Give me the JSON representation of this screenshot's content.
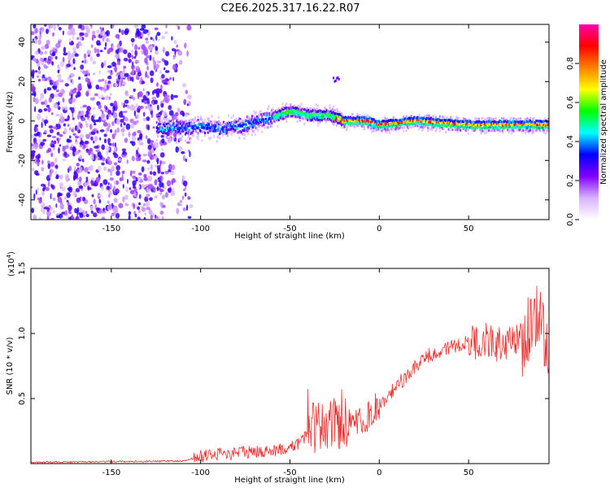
{
  "title": "C2E6.2025.317.16.22.R07",
  "chart_data": [
    {
      "type": "heatmap",
      "name": "spectrogram",
      "xlabel": "Height of straight line (km)",
      "ylabel": "Frequency (Hz)",
      "xlim": [
        -195,
        95
      ],
      "ylim": [
        -50,
        49
      ],
      "xticks": [
        -150,
        -100,
        -50,
        0,
        50
      ],
      "yticks": [
        -40,
        -20,
        0,
        20,
        40
      ],
      "colorbar": {
        "label": "Normalized spectral amplitude",
        "range": [
          0,
          1
        ],
        "ticks": [
          "0.0",
          "0.2",
          "0.4",
          "0.6",
          "0.8"
        ],
        "colors": [
          "#ffffff",
          "#d9b3ff",
          "#8000ff",
          "#0000ff",
          "#00ffff",
          "#00ff00",
          "#ffff00",
          "#ff8000",
          "#ff0000",
          "#ff00aa"
        ]
      },
      "ridge_center": [
        {
          "x": -120,
          "y": -4
        },
        {
          "x": -100,
          "y": -3
        },
        {
          "x": -90,
          "y": -4
        },
        {
          "x": -75,
          "y": -2
        },
        {
          "x": -60,
          "y": 2
        },
        {
          "x": -50,
          "y": 5
        },
        {
          "x": -40,
          "y": 3
        },
        {
          "x": -28,
          "y": 3
        },
        {
          "x": -20,
          "y": 0
        },
        {
          "x": -8,
          "y": 0
        },
        {
          "x": 0,
          "y": -2
        },
        {
          "x": 20,
          "y": 0
        },
        {
          "x": 50,
          "y": -2
        },
        {
          "x": 95,
          "y": -2
        }
      ]
    },
    {
      "type": "line",
      "name": "snr",
      "xlabel": "Height of straight line (km)",
      "ylabel": "SNR (10 * v/v)",
      "yscale_note": "(x10",
      "yscale_exp": "4",
      "xlim": [
        -195,
        95
      ],
      "ylim": [
        0,
        1.5
      ],
      "xticks": [
        -150,
        -100,
        -50,
        0,
        50
      ],
      "yticks": [
        "0.5",
        "1.0",
        "1.5"
      ],
      "color": "#e8312f",
      "envelope": [
        {
          "x": -195,
          "y": 0.01
        },
        {
          "x": -110,
          "y": 0.02
        },
        {
          "x": -100,
          "y": 0.06
        },
        {
          "x": -80,
          "y": 0.08
        },
        {
          "x": -60,
          "y": 0.1
        },
        {
          "x": -45,
          "y": 0.15
        },
        {
          "x": -35,
          "y": 0.3
        },
        {
          "x": -20,
          "y": 0.3
        },
        {
          "x": -10,
          "y": 0.32
        },
        {
          "x": 0,
          "y": 0.45
        },
        {
          "x": 10,
          "y": 0.6
        },
        {
          "x": 20,
          "y": 0.75
        },
        {
          "x": 30,
          "y": 0.85
        },
        {
          "x": 40,
          "y": 0.9
        },
        {
          "x": 50,
          "y": 0.93
        },
        {
          "x": 60,
          "y": 0.95
        },
        {
          "x": 70,
          "y": 0.9
        },
        {
          "x": 80,
          "y": 0.95
        },
        {
          "x": 90,
          "y": 1.1
        },
        {
          "x": 95,
          "y": 0.9
        }
      ]
    }
  ]
}
